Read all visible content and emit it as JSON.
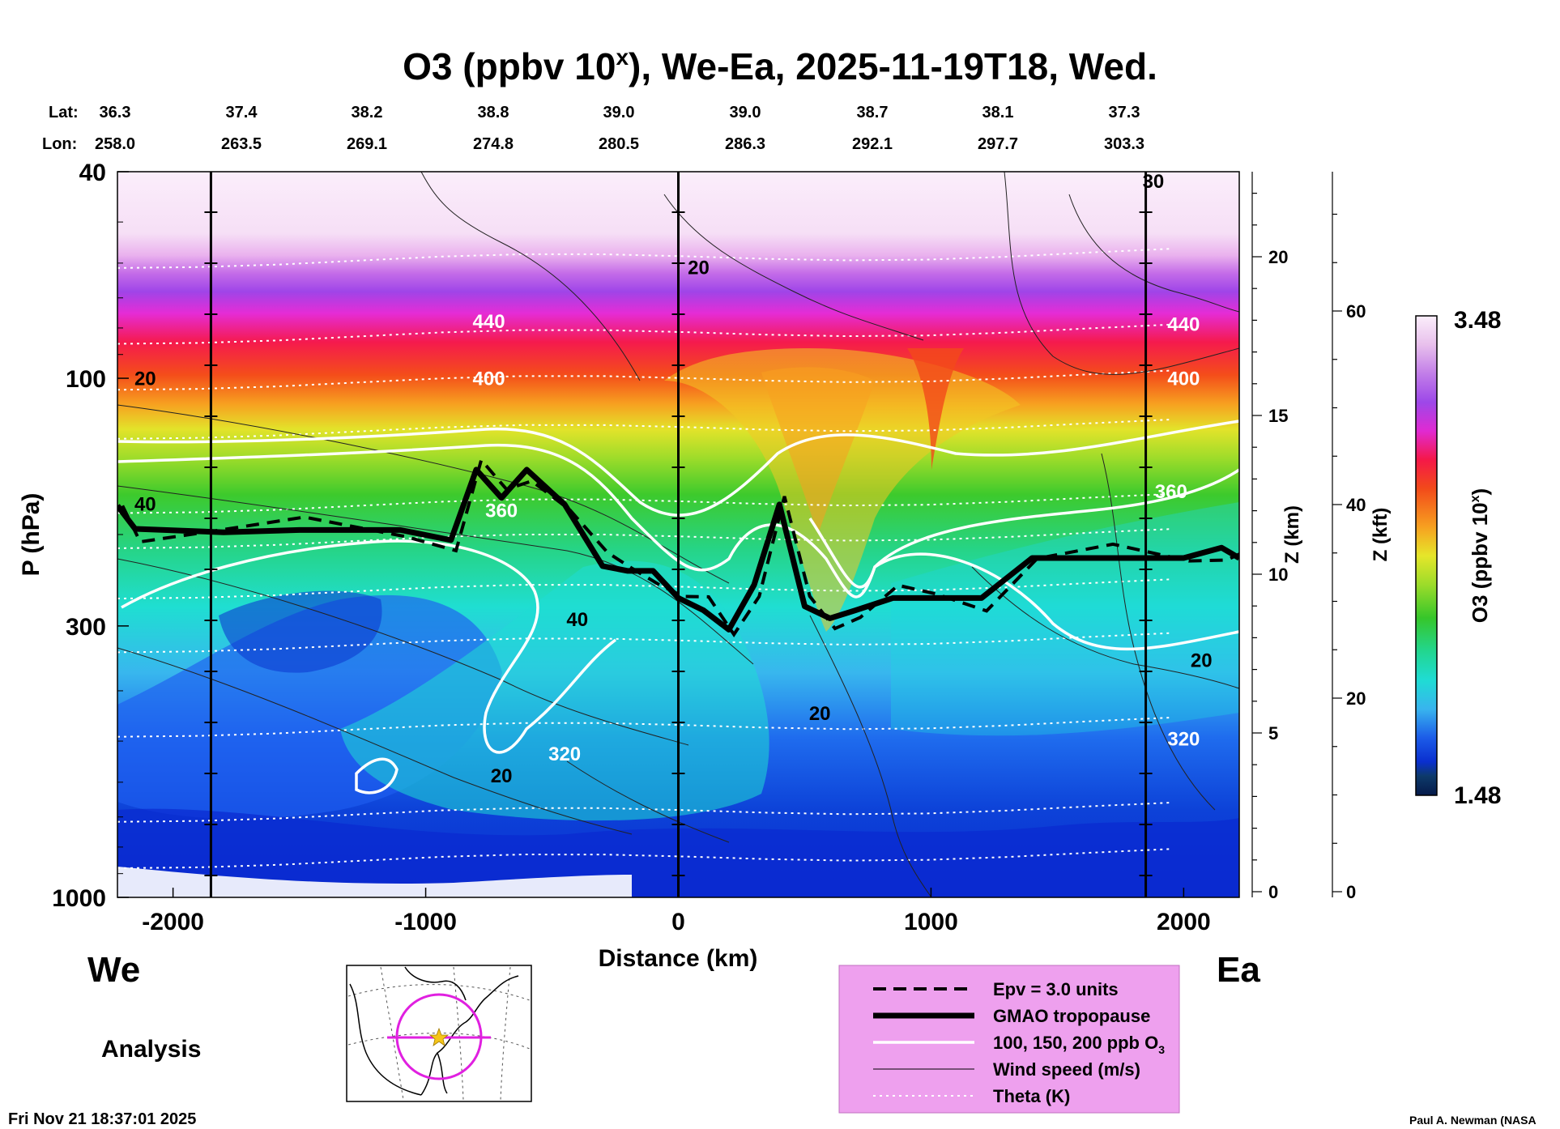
{
  "header": {
    "title_main": "O3 (ppbv 10",
    "title_sup": "x",
    "title_rest": "), We-Ea, 2025-11-19T18, Wed.",
    "lat_label": "Lat:",
    "lon_label": "Lon:",
    "lats": [
      "36.3",
      "37.4",
      "38.2",
      "38.8",
      "39.0",
      "39.0",
      "38.7",
      "38.1",
      "37.3"
    ],
    "lons": [
      "258.0",
      "263.5",
      "269.1",
      "274.8",
      "280.5",
      "286.3",
      "292.1",
      "297.7",
      "303.3"
    ]
  },
  "chart_data": {
    "type": "heatmap",
    "title": "O3 (ppbv 10^x), We-Ea, 2025-11-19T18, Wed.",
    "xlabel": "Distance (km)",
    "ylabel": "P (hPa)",
    "xlim": [
      -2220,
      2220
    ],
    "ylim": [
      1000,
      40
    ],
    "yscale": "log",
    "x_ticks": [
      -2000,
      -1000,
      0,
      1000,
      2000
    ],
    "x_tick_labels": [
      "-2000",
      "-1000",
      "0",
      "1000",
      "2000"
    ],
    "y_ticks": [
      40,
      100,
      300,
      1000
    ],
    "y_tick_labels": [
      "40",
      "100",
      "300",
      "1000"
    ],
    "z_km_label": "Z (km)",
    "z_km_ticks": [
      0,
      5,
      10,
      15,
      20
    ],
    "z_km_labels": [
      "0",
      "5",
      "10",
      "15",
      "20"
    ],
    "z_kft_label": "Z (kft)",
    "z_kft_ticks": [
      0,
      20,
      40,
      60
    ],
    "z_kft_labels": [
      "0",
      "20",
      "40",
      "60"
    ],
    "side_left": "We",
    "side_right": "Ea",
    "colorbar": {
      "label": "O3 (ppbv 10",
      "label_sup": "x",
      "label_end": ")",
      "min_label": "1.48",
      "max_label": "3.48",
      "min": 1.48,
      "max": 3.48
    },
    "vertical_lines_km": [
      -1850,
      0,
      1850
    ],
    "tropopause_p_hPa": [
      [
        -2220,
        176
      ],
      [
        -2150,
        195
      ],
      [
        -1800,
        198
      ],
      [
        -1500,
        196
      ],
      [
        -1100,
        196
      ],
      [
        -900,
        205
      ],
      [
        -800,
        150
      ],
      [
        -700,
        170
      ],
      [
        -600,
        150
      ],
      [
        -450,
        175
      ],
      [
        -300,
        230
      ],
      [
        -200,
        235
      ],
      [
        -100,
        235
      ],
      [
        0,
        265
      ],
      [
        100,
        280
      ],
      [
        200,
        305
      ],
      [
        300,
        250
      ],
      [
        400,
        175
      ],
      [
        500,
        275
      ],
      [
        600,
        290
      ],
      [
        700,
        280
      ],
      [
        850,
        265
      ],
      [
        1000,
        265
      ],
      [
        1200,
        265
      ],
      [
        1400,
        222
      ],
      [
        1700,
        222
      ],
      [
        2000,
        222
      ],
      [
        2150,
        212
      ],
      [
        2220,
        222
      ]
    ],
    "theta_K_labels": [
      {
        "x": -750,
        "p": 80,
        "text": "440"
      },
      {
        "x": -750,
        "p": 103,
        "text": "400"
      },
      {
        "x": -700,
        "p": 185,
        "text": "360"
      },
      {
        "x": -450,
        "p": 545,
        "text": "320"
      },
      {
        "x": 2000,
        "p": 81,
        "text": "440"
      },
      {
        "x": 2000,
        "p": 103,
        "text": "400"
      },
      {
        "x": 1950,
        "p": 170,
        "text": "360"
      },
      {
        "x": 2000,
        "p": 510,
        "text": "320"
      }
    ],
    "wind_speed_labels": [
      {
        "x": -2110,
        "p": 103,
        "text": "20"
      },
      {
        "x": -2110,
        "p": 180,
        "text": "40"
      },
      {
        "x": -400,
        "p": 300,
        "text": "40"
      },
      {
        "x": -700,
        "p": 600,
        "text": "20"
      },
      {
        "x": 80,
        "p": 63,
        "text": "20"
      },
      {
        "x": 1880,
        "p": 43,
        "text": "30"
      },
      {
        "x": 2070,
        "p": 360,
        "text": "20"
      },
      {
        "x": 560,
        "p": 455,
        "text": "20"
      }
    ],
    "legend": [
      {
        "style": "dashed-black",
        "label": "Epv = 3.0 units"
      },
      {
        "style": "thick-black",
        "label": "GMAO tropopause"
      },
      {
        "style": "white",
        "label": "100, 150, 200 ppb O",
        "label_sub": "3"
      },
      {
        "style": "thin-black",
        "label": "Wind speed (m/s)"
      },
      {
        "style": "dotted-white",
        "label": "Theta (K)"
      }
    ]
  },
  "footer": {
    "analysis": "Analysis",
    "timestamp": "Fri Nov 21 18:37:01 2025",
    "credit": "Paul A. Newman (NASA"
  }
}
